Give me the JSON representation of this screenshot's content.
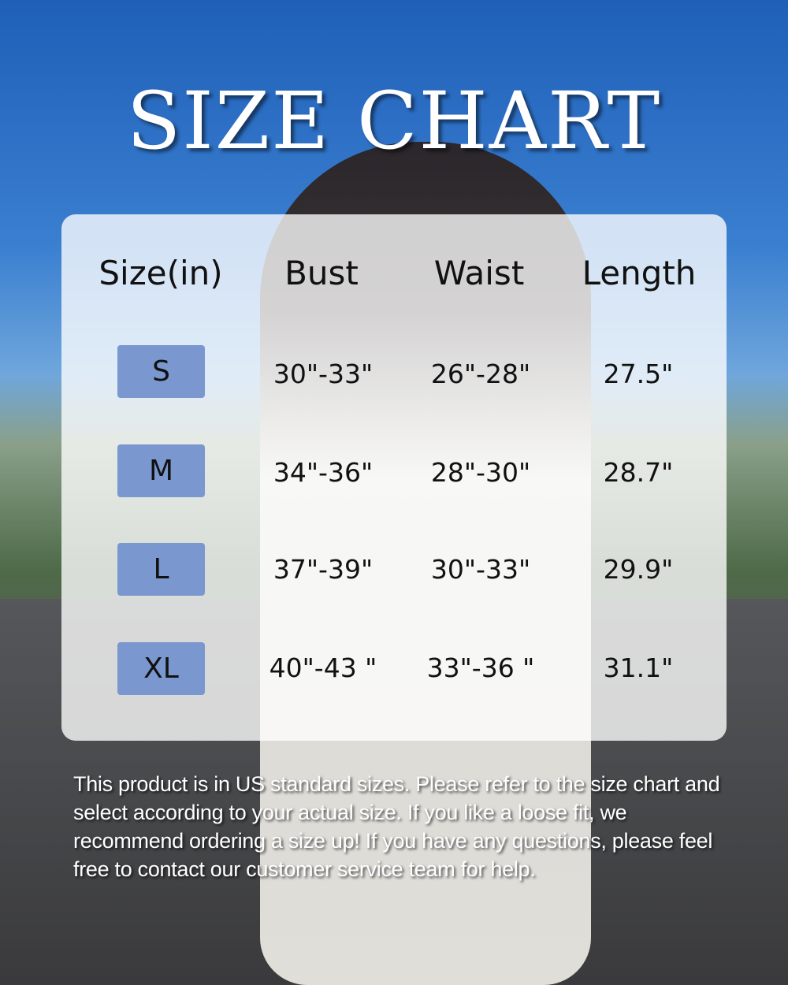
{
  "title": "SIZE CHART",
  "headers": [
    "Size(in)",
    "Bust",
    "Waist",
    "Length"
  ],
  "rows": [
    {
      "size": "S",
      "bust": "30\"-33\"",
      "waist": "26\"-28\"",
      "length": "27.5\""
    },
    {
      "size": "M",
      "bust": "34\"-36\"",
      "waist": "28\"-30\"",
      "length": "28.7\""
    },
    {
      "size": "L",
      "bust": "37\"-39\"",
      "waist": "30\"-33\"",
      "length": "29.9\""
    },
    {
      "size": "XL",
      "bust": "40\"-43 \"",
      "waist": "33\"-36 \"",
      "length": "31.1\""
    }
  ],
  "note": "This product is in US standard sizes. Please refer to the size chart and select according to your actual size. If you like a loose fit, we  recommend ordering a size up! If you have any questions, please feel free to contact our customer service team for help.",
  "colors": {
    "badge": "#7a98cf",
    "panel": "#ffffff"
  }
}
